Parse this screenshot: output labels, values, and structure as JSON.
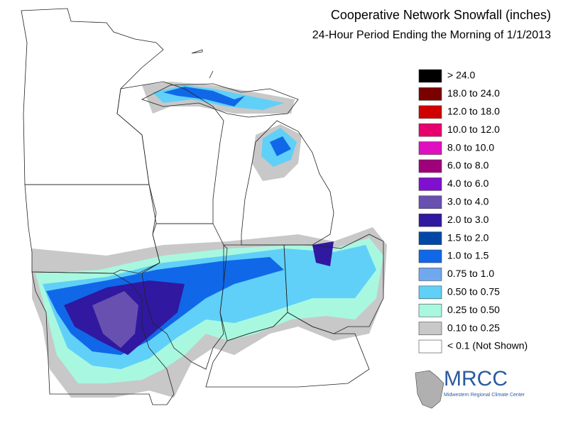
{
  "header": {
    "title": "Cooperative Network Snowfall (inches)",
    "subtitle": "24-Hour Period Ending the Morning of 1/1/2013"
  },
  "legend": {
    "items": [
      {
        "label": "> 24.0",
        "color": "#000000"
      },
      {
        "label": "18.0 to 24.0",
        "color": "#7a0000"
      },
      {
        "label": "12.0 to 18.0",
        "color": "#d00000"
      },
      {
        "label": "10.0 to 12.0",
        "color": "#e8006e"
      },
      {
        "label": "8.0 to 10.0",
        "color": "#e010c0"
      },
      {
        "label": "6.0 to 8.0",
        "color": "#a0007a"
      },
      {
        "label": "4.0 to 6.0",
        "color": "#8010d0"
      },
      {
        "label": "3.0 to 4.0",
        "color": "#6850b0"
      },
      {
        "label": "2.0 to 3.0",
        "color": "#3018a0"
      },
      {
        "label": "1.5 to 2.0",
        "color": "#0048a8"
      },
      {
        "label": "1.0 to 1.5",
        "color": "#1068e8"
      },
      {
        "label": "0.75 to 1.0",
        "color": "#70a8f0"
      },
      {
        "label": "0.50 to 0.75",
        "color": "#60d0f8"
      },
      {
        "label": "0.25 to 0.50",
        "color": "#a8f8e0"
      },
      {
        "label": "0.10 to 0.25",
        "color": "#c8c8c8"
      },
      {
        "label": "< 0.1 (Not Shown)",
        "color": "#ffffff"
      }
    ]
  },
  "logo": {
    "name": "MRCC",
    "subtitle": "Midwestern Regional Climate Center"
  }
}
